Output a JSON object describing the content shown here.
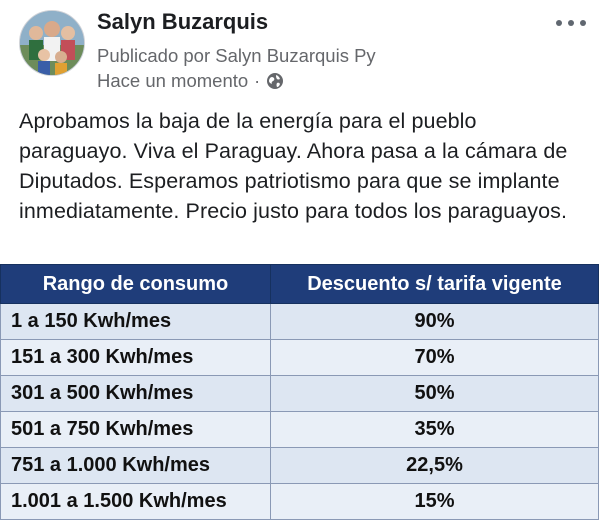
{
  "post": {
    "author": "Salyn Buzarquis",
    "published_by": "Publicado por Salyn Buzarquis Py",
    "time": "Hace un momento",
    "separator": "·",
    "audience_icon": "globe-icon",
    "more_icon": "more-options-icon",
    "text": "Aprobamos la baja de la energía para el pueblo paraguayo. Viva el Paraguay. Ahora pasa a la cámara de Diputados. Esperamos patriotismo para que se implante inmediatamente. Precio justo para todos los paraguayos."
  },
  "table": {
    "headers": [
      "Rango de consumo",
      "Descuento s/ tarifa vigente"
    ],
    "rows": [
      {
        "range": "1 a 150 Kwh/mes",
        "discount": "90%"
      },
      {
        "range": "151 a 300 Kwh/mes",
        "discount": "70%"
      },
      {
        "range": "301 a 500 Kwh/mes",
        "discount": "50%"
      },
      {
        "range": "501 a 750 Kwh/mes",
        "discount": "35%"
      },
      {
        "range": "751 a 1.000 Kwh/mes",
        "discount": "22,5%"
      },
      {
        "range": "1.001 a 1.500 Kwh/mes",
        "discount": "15%"
      }
    ],
    "header_color": "#1f3d7a",
    "row_color": "#dde6f2"
  }
}
